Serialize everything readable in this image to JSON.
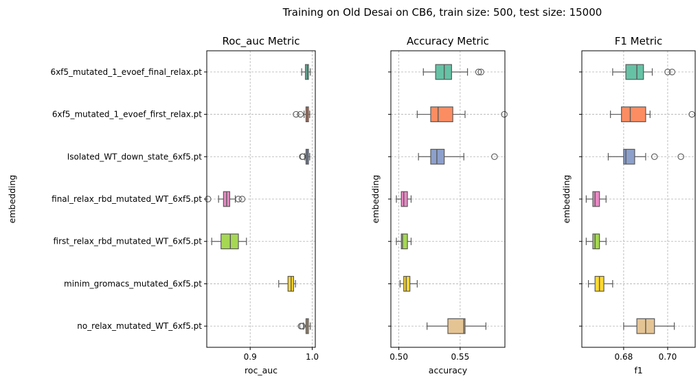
{
  "suptitle": "Training on Old Desai on CB6, train size: 500, test size: 15000",
  "embeddings": [
    "6xf5_mutated_1_evoef_final_relax.pt",
    "6xf5_mutated_1_evoef_first_relax.pt",
    "Isolated_WT_down_state_6xf5.pt",
    "final_relax_rbd_mutated_WT_6xf5.pt",
    "first_relax_rbd_mutated_WT_6xf5.pt",
    "minim_gromacs_mutated_6xf5.pt",
    "no_relax_mutated_WT_6xf5.pt"
  ],
  "colors": [
    "#66c2a5",
    "#fc8d62",
    "#8da0cb",
    "#e78ac3",
    "#a6d854",
    "#ffd92f",
    "#e5c494"
  ],
  "chart_data": [
    {
      "type": "box",
      "title": "Roc_auc Metric",
      "xlabel": "roc_auc",
      "ylabel": "embedding",
      "xlim": [
        0.83,
        1.005
      ],
      "xticks": [
        0.9,
        1.0
      ],
      "xtick_labels": [
        "0.9",
        "1.0"
      ],
      "grid": true,
      "boxes": [
        {
          "whislo": 0.983,
          "q1": 0.989,
          "median": 0.992,
          "q3": 0.994,
          "whishi": 0.997,
          "fliers": []
        },
        {
          "whislo": 0.987,
          "q1": 0.99,
          "median": 0.992,
          "q3": 0.994,
          "whishi": 0.996,
          "fliers": [
            0.974,
            0.981
          ]
        },
        {
          "whislo": 0.988,
          "q1": 0.99,
          "median": 0.992,
          "q3": 0.994,
          "whishi": 0.996,
          "fliers": [
            0.984,
            0.985
          ]
        },
        {
          "whislo": 0.849,
          "q1": 0.857,
          "median": 0.862,
          "q3": 0.867,
          "whishi": 0.876,
          "fliers": [
            0.832,
            0.881,
            0.887
          ]
        },
        {
          "whislo": 0.838,
          "q1": 0.853,
          "median": 0.868,
          "q3": 0.881,
          "whishi": 0.894,
          "fliers": []
        },
        {
          "whislo": 0.946,
          "q1": 0.961,
          "median": 0.966,
          "q3": 0.97,
          "whishi": 0.973,
          "fliers": []
        },
        {
          "whislo": 0.986,
          "q1": 0.99,
          "median": 0.992,
          "q3": 0.994,
          "whishi": 0.997,
          "fliers": [
            0.982,
            0.984
          ]
        }
      ]
    },
    {
      "type": "box",
      "title": "Accuracy Metric",
      "xlabel": "accuracy",
      "ylabel": "embedding",
      "xlim": [
        0.4935,
        0.5865
      ],
      "xticks": [
        0.5,
        0.55
      ],
      "xtick_labels": [
        "0.50",
        "0.55"
      ],
      "grid": true,
      "boxes": [
        {
          "whislo": 0.52,
          "q1": 0.53,
          "median": 0.537,
          "q3": 0.543,
          "whishi": 0.556,
          "fliers": [
            0.565,
            0.567
          ]
        },
        {
          "whislo": 0.515,
          "q1": 0.526,
          "median": 0.532,
          "q3": 0.544,
          "whishi": 0.554,
          "fliers": [
            0.586
          ]
        },
        {
          "whislo": 0.516,
          "q1": 0.526,
          "median": 0.531,
          "q3": 0.537,
          "whishi": 0.553,
          "fliers": [
            0.578
          ]
        },
        {
          "whislo": 0.498,
          "q1": 0.502,
          "median": 0.504,
          "q3": 0.507,
          "whishi": 0.51,
          "fliers": []
        },
        {
          "whislo": 0.498,
          "q1": 0.502,
          "median": 0.503,
          "q3": 0.507,
          "whishi": 0.51,
          "fliers": []
        },
        {
          "whislo": 0.501,
          "q1": 0.504,
          "median": 0.506,
          "q3": 0.509,
          "whishi": 0.515,
          "fliers": []
        },
        {
          "whislo": 0.523,
          "q1": 0.54,
          "median": 0.553,
          "q3": 0.554,
          "whishi": 0.571,
          "fliers": []
        }
      ]
    },
    {
      "type": "box",
      "title": "F1 Metric",
      "xlabel": "f1",
      "ylabel": "embedding",
      "xlim": [
        0.661,
        0.7125
      ],
      "xticks": [
        0.68,
        0.7
      ],
      "xtick_labels": [
        "0.68",
        "0.70"
      ],
      "grid": true,
      "boxes": [
        {
          "whislo": 0.675,
          "q1": 0.681,
          "median": 0.686,
          "q3": 0.689,
          "whishi": 0.693,
          "fliers": [
            0.7,
            0.702
          ]
        },
        {
          "whislo": 0.674,
          "q1": 0.679,
          "median": 0.683,
          "q3": 0.69,
          "whishi": 0.692,
          "fliers": [
            0.711
          ]
        },
        {
          "whislo": 0.673,
          "q1": 0.68,
          "median": 0.681,
          "q3": 0.685,
          "whishi": 0.69,
          "fliers": [
            0.694,
            0.706
          ]
        },
        {
          "whislo": 0.663,
          "q1": 0.666,
          "median": 0.667,
          "q3": 0.669,
          "whishi": 0.672,
          "fliers": []
        },
        {
          "whislo": 0.663,
          "q1": 0.666,
          "median": 0.667,
          "q3": 0.669,
          "whishi": 0.672,
          "fliers": []
        },
        {
          "whislo": 0.664,
          "q1": 0.667,
          "median": 0.669,
          "q3": 0.671,
          "whishi": 0.675,
          "fliers": []
        },
        {
          "whislo": 0.68,
          "q1": 0.686,
          "median": 0.69,
          "q3": 0.694,
          "whishi": 0.703,
          "fliers": []
        }
      ]
    }
  ]
}
